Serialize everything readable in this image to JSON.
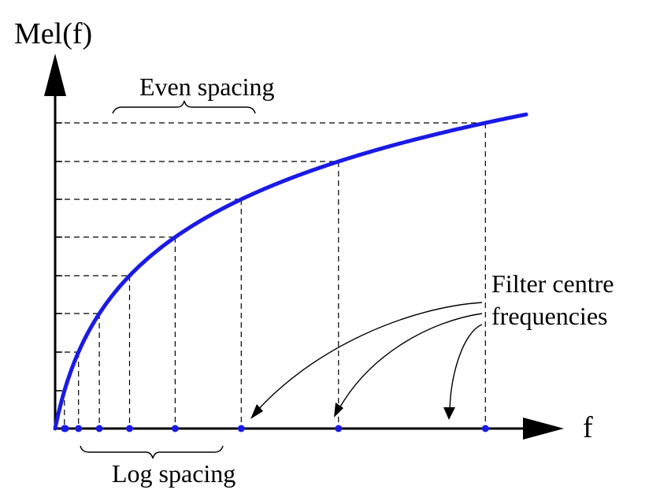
{
  "diagram": {
    "y_axis_label": "Mel(f)",
    "x_axis_label": "f",
    "even_spacing_label": "Even spacing",
    "log_spacing_label": "Log spacing",
    "filter_label_line1": "Filter centre",
    "filter_label_line2": "frequencies"
  },
  "colors": {
    "curve": "#1a1ae6",
    "axes": "#000000",
    "guides": "#000000",
    "markers": "#1a1ae6"
  }
}
